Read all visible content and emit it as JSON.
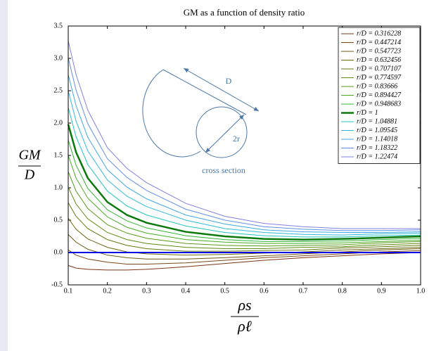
{
  "chart_data": {
    "type": "line",
    "title": "GM as a function of density ratio",
    "xlabel": {
      "numerator": "ρs",
      "denominator": "ρℓ"
    },
    "ylabel": {
      "numerator": "GM",
      "denominator": "D"
    },
    "annotations": [
      "D",
      "2r",
      "cross section"
    ],
    "x": [
      0.1,
      0.12,
      0.15,
      0.2,
      0.25,
      0.3,
      0.4,
      0.5,
      0.6,
      0.7,
      0.8,
      0.9,
      1.0
    ],
    "xlim": [
      0.1,
      1.0
    ],
    "xticks": [
      0.1,
      0.2,
      0.3,
      0.4,
      0.5,
      0.6,
      0.7,
      0.8,
      0.9,
      {
        "value": 1.0,
        "label": "1.0"
      }
    ],
    "ylim": [
      -0.5,
      3.5
    ],
    "yticks": [
      -0.5,
      {
        "value": 0,
        "label": "0.0"
      },
      0.5,
      {
        "value": 1,
        "label": "1.0"
      },
      1.5,
      {
        "value": 2,
        "label": "2.0"
      },
      2.5,
      {
        "value": 3,
        "label": "3.0"
      },
      3.5
    ],
    "hline": {
      "value": 0,
      "color": "#0000e6"
    },
    "legend": "upper right",
    "series": [
      {
        "name": "r/D = 0.316228",
        "color": "#7a3418",
        "width": 1,
        "values": [
          -0.2,
          -0.24,
          -0.26,
          -0.27,
          -0.27,
          -0.26,
          -0.22,
          -0.17,
          -0.12,
          -0.08,
          -0.05,
          -0.02,
          0
        ]
      },
      {
        "name": "r/D = 0.447214",
        "color": "#7a4818",
        "width": 1,
        "values": [
          0.04,
          -0.04,
          -0.1,
          -0.15,
          -0.18,
          -0.18,
          -0.16,
          -0.12,
          -0.08,
          -0.05,
          -0.02,
          0.01,
          0.03
        ]
      },
      {
        "name": "r/D = 0.547723",
        "color": "#6e5814",
        "width": 1,
        "values": [
          0.28,
          0.16,
          0.05,
          -0.04,
          -0.08,
          -0.1,
          -0.1,
          -0.08,
          -0.05,
          -0.02,
          0.01,
          0.04,
          0.06
        ]
      },
      {
        "name": "r/D = 0.632456",
        "color": "#6a6812",
        "width": 1,
        "values": [
          0.53,
          0.36,
          0.21,
          0.08,
          0.01,
          -0.02,
          -0.04,
          -0.03,
          -0.01,
          0.01,
          0.04,
          0.06,
          0.08
        ]
      },
      {
        "name": "r/D = 0.707107",
        "color": "#667810",
        "width": 1,
        "values": [
          0.77,
          0.56,
          0.37,
          0.2,
          0.11,
          0.06,
          0.02,
          0.02,
          0.03,
          0.04,
          0.07,
          0.09,
          0.11
        ]
      },
      {
        "name": "r/D = 0.774597",
        "color": "#608a12",
        "width": 1,
        "values": [
          1.01,
          0.75,
          0.52,
          0.31,
          0.2,
          0.14,
          0.08,
          0.06,
          0.06,
          0.08,
          0.09,
          0.12,
          0.14
        ]
      },
      {
        "name": "r/D = 0.83666",
        "color": "#5a9a18",
        "width": 1,
        "values": [
          1.25,
          0.95,
          0.68,
          0.43,
          0.3,
          0.22,
          0.14,
          0.11,
          0.1,
          0.11,
          0.12,
          0.15,
          0.17
        ]
      },
      {
        "name": "r/D = 0.894427",
        "color": "#48aa22",
        "width": 1,
        "values": [
          1.5,
          1.15,
          0.84,
          0.55,
          0.39,
          0.3,
          0.2,
          0.16,
          0.14,
          0.14,
          0.15,
          0.17,
          0.19
        ]
      },
      {
        "name": "r/D = 0.948683",
        "color": "#30b432",
        "width": 1,
        "values": [
          1.74,
          1.35,
          0.99,
          0.66,
          0.49,
          0.38,
          0.26,
          0.2,
          0.17,
          0.17,
          0.18,
          0.2,
          0.22
        ]
      },
      {
        "name": "r/D = 1",
        "color": "#0a780a",
        "width": 2.5,
        "values": [
          1.98,
          1.55,
          1.15,
          0.78,
          0.58,
          0.46,
          0.32,
          0.25,
          0.21,
          0.2,
          0.21,
          0.23,
          0.25
        ]
      },
      {
        "name": "r/D = 1.04881",
        "color": "#22c4c0",
        "width": 1,
        "values": [
          2.24,
          1.79,
          1.36,
          0.95,
          0.72,
          0.58,
          0.41,
          0.31,
          0.26,
          0.24,
          0.24,
          0.26,
          0.27
        ]
      },
      {
        "name": "r/D = 1.09545",
        "color": "#30b8da",
        "width": 1,
        "values": [
          2.5,
          2.03,
          1.57,
          1.12,
          0.87,
          0.71,
          0.5,
          0.37,
          0.31,
          0.28,
          0.27,
          0.29,
          0.3
        ]
      },
      {
        "name": "r/D = 1.14018",
        "color": "#40a6e2",
        "width": 1,
        "values": [
          2.75,
          2.27,
          1.78,
          1.28,
          1.01,
          0.83,
          0.58,
          0.44,
          0.35,
          0.32,
          0.31,
          0.31,
          0.32
        ]
      },
      {
        "name": "r/D = 1.18322",
        "color": "#6090e2",
        "width": 1,
        "values": [
          3.01,
          2.51,
          1.99,
          1.45,
          1.16,
          0.96,
          0.67,
          0.5,
          0.4,
          0.36,
          0.34,
          0.34,
          0.35
        ]
      },
      {
        "name": "r/D = 1.22474",
        "color": "#8080e0",
        "width": 1,
        "values": [
          3.27,
          2.75,
          2.2,
          1.62,
          1.3,
          1.08,
          0.76,
          0.56,
          0.45,
          0.4,
          0.37,
          0.37,
          0.37
        ]
      }
    ]
  }
}
